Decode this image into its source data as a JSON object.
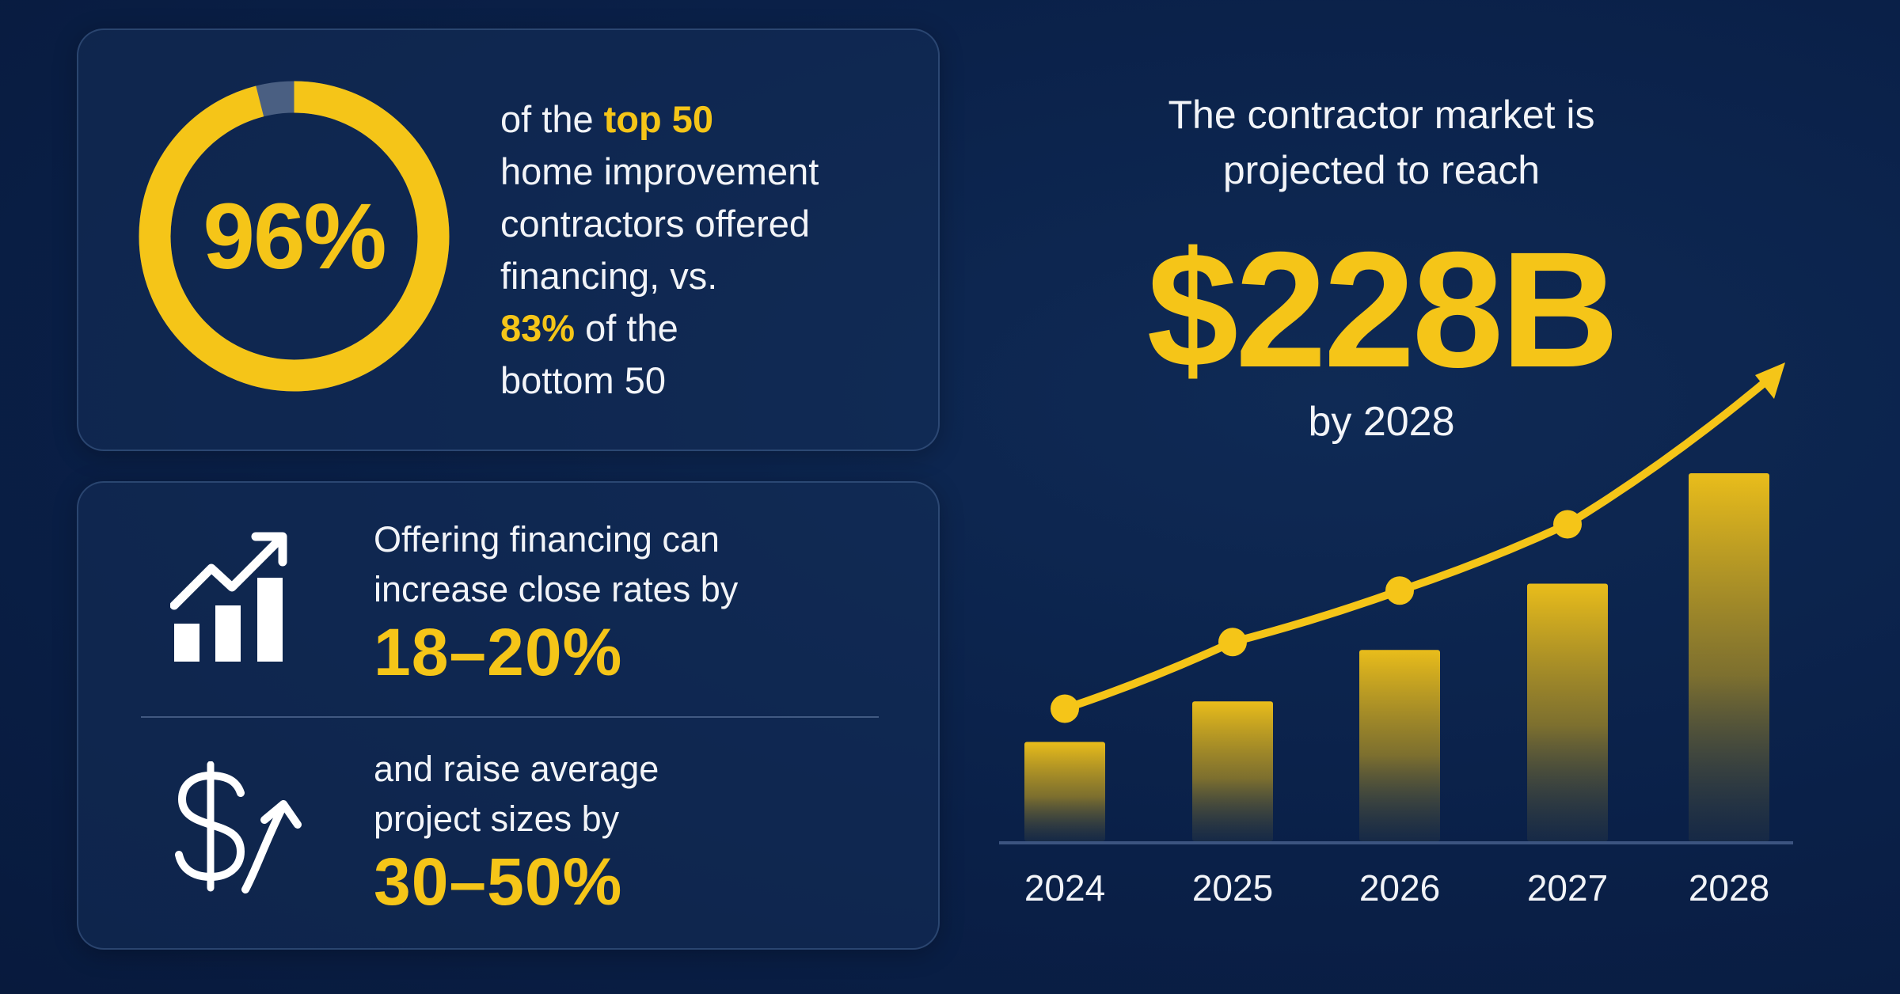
{
  "colors": {
    "accent": "#f5c518",
    "background": "#0a2048",
    "text": "#f2f4f8"
  },
  "ring_stat": {
    "value": "96%",
    "fraction": 0.96,
    "text_line1_prefix": "of the ",
    "text_line1_highlight": "top 50",
    "text_line2": "home improvement",
    "text_line3": "contractors offered",
    "text_line4": "financing, vs.",
    "text_line5_highlight": "83%",
    "text_line5_suffix": " of the",
    "text_line6": "bottom 50"
  },
  "features": [
    {
      "icon": "bar-chart-trend-up-icon",
      "line1": "Offering financing can",
      "line2": "increase close rates by",
      "value": "18–20%"
    },
    {
      "icon": "dollar-arrow-up-icon",
      "line1": "and raise average",
      "line2": "project sizes  by",
      "value": "30–50%"
    }
  ],
  "market": {
    "headline_line1": "The contractor market is",
    "headline_line2": "projected to reach",
    "value": "$228B",
    "subtext": "by 2028"
  },
  "chart_data": {
    "type": "bar",
    "categories": [
      "2024",
      "2025",
      "2026",
      "2027",
      "2028"
    ],
    "values": [
      0.27,
      0.38,
      0.52,
      0.7,
      1.0
    ],
    "title": "",
    "xlabel": "",
    "ylabel": "",
    "ylim": [
      0,
      1
    ],
    "grid": false,
    "trend_line": true
  }
}
